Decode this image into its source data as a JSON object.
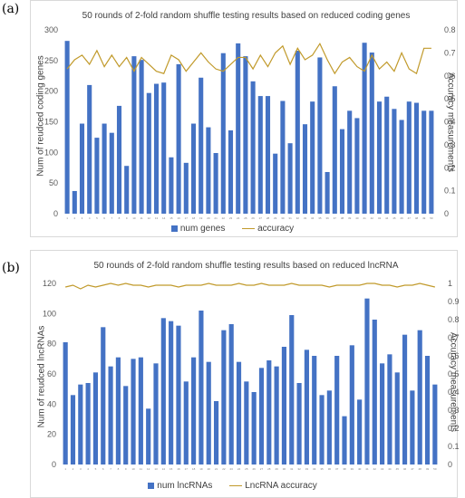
{
  "chart_data": [
    {
      "type": "bar",
      "panel_label": "(a)",
      "title": "50 rounds of 2-fold random shuffle testing results based on reduced coding genes",
      "ylabel": "Num of reudced coding genes",
      "y2label": "Accuracy measurements",
      "ylim": [
        0,
        300
      ],
      "yticks": [
        0,
        50,
        100,
        150,
        200,
        250,
        300
      ],
      "y2lim": [
        0,
        0.8
      ],
      "y2ticks": [
        "0",
        "0.1",
        "0.2",
        "0.3",
        "0.4",
        "0.5",
        "0.6",
        "0.7",
        "0.8"
      ],
      "categories": [
        "1",
        "2",
        "3",
        "4",
        "5",
        "6",
        "7",
        "8",
        "9",
        "10",
        "11",
        "12",
        "13",
        "14",
        "15",
        "16",
        "17",
        "18",
        "19",
        "20",
        "21",
        "22",
        "23",
        "24",
        "25",
        "26",
        "27",
        "28",
        "29",
        "30",
        "31",
        "32",
        "33",
        "34",
        "35",
        "36",
        "37",
        "38",
        "39",
        "40",
        "41",
        "42",
        "43",
        "44",
        "45",
        "46",
        "47",
        "48",
        "49",
        "50"
      ],
      "legend_position": "bottom",
      "series": [
        {
          "name": "num genes",
          "kind": "bar",
          "color": "#4472c4",
          "values": [
            282,
            37,
            147,
            210,
            124,
            147,
            132,
            176,
            78,
            257,
            251,
            197,
            212,
            214,
            92,
            244,
            83,
            147,
            222,
            141,
            99,
            262,
            136,
            278,
            257,
            216,
            192,
            192,
            98,
            184,
            115,
            266,
            146,
            183,
            255,
            68,
            208,
            138,
            168,
            156,
            279,
            263,
            183,
            191,
            171,
            153,
            183,
            181,
            168,
            168
          ]
        },
        {
          "name": "accuracy",
          "kind": "line",
          "axis": "right",
          "color": "#c19a2b",
          "values": [
            0.63,
            0.67,
            0.69,
            0.65,
            0.71,
            0.64,
            0.69,
            0.64,
            0.68,
            0.62,
            0.68,
            0.65,
            0.62,
            0.61,
            0.69,
            0.67,
            0.62,
            0.66,
            0.7,
            0.66,
            0.63,
            0.62,
            0.65,
            0.68,
            0.68,
            0.63,
            0.69,
            0.64,
            0.7,
            0.73,
            0.65,
            0.72,
            0.67,
            0.69,
            0.74,
            0.67,
            0.61,
            0.66,
            0.68,
            0.64,
            0.62,
            0.69,
            0.63,
            0.66,
            0.62,
            0.7,
            0.63,
            0.61,
            0.72,
            0.72
          ]
        }
      ]
    },
    {
      "type": "bar",
      "panel_label": "(b)",
      "title": "50 rounds of 2-fold random shuffle testing results based on reduced lncRNA",
      "ylabel": "Num of reudced lncRNAs",
      "y2label": "Accuracy measurements",
      "ylim": [
        0,
        120
      ],
      "yticks": [
        0,
        20,
        40,
        60,
        80,
        100,
        120
      ],
      "y2lim": [
        0,
        1
      ],
      "y2ticks": [
        "0",
        "0.1",
        "0.2",
        "0.3",
        "0.4",
        "0.5",
        "0.6",
        "0.7",
        "0.8",
        "0.9",
        "1"
      ],
      "categories": [
        "1",
        "2",
        "3",
        "4",
        "5",
        "6",
        "7",
        "8",
        "9",
        "10",
        "11",
        "12",
        "13",
        "14",
        "15",
        "16",
        "17",
        "18",
        "19",
        "20",
        "21",
        "22",
        "23",
        "24",
        "25",
        "26",
        "27",
        "28",
        "29",
        "30",
        "31",
        "32",
        "33",
        "34",
        "35",
        "36",
        "37",
        "38",
        "39",
        "40",
        "41",
        "42",
        "43",
        "44",
        "45",
        "46",
        "47",
        "48",
        "49",
        "50"
      ],
      "legend_position": "bottom",
      "series": [
        {
          "name": "num lncRNAs",
          "kind": "bar",
          "color": "#4472c4",
          "values": [
            81,
            46,
            53,
            54,
            61,
            91,
            65,
            71,
            52,
            70,
            71,
            37,
            67,
            97,
            95,
            92,
            55,
            71,
            102,
            68,
            42,
            89,
            93,
            68,
            55,
            48,
            64,
            69,
            65,
            78,
            99,
            54,
            76,
            72,
            46,
            49,
            72,
            32,
            79,
            43,
            110,
            96,
            67,
            73,
            61,
            86,
            49,
            89,
            72,
            53
          ]
        },
        {
          "name": "LncRNA accuracy",
          "kind": "line",
          "axis": "right",
          "color": "#c19a2b",
          "values": [
            0.98,
            0.99,
            0.97,
            0.99,
            0.98,
            0.99,
            1.0,
            0.99,
            1.0,
            0.99,
            0.99,
            0.98,
            0.99,
            0.99,
            0.99,
            0.98,
            0.99,
            0.99,
            0.99,
            1.0,
            0.99,
            0.99,
            0.99,
            1.0,
            0.99,
            0.99,
            1.0,
            0.99,
            0.99,
            0.99,
            1.0,
            0.99,
            0.99,
            0.99,
            0.99,
            0.98,
            0.99,
            0.99,
            0.99,
            0.99,
            1.0,
            1.0,
            0.99,
            0.99,
            0.98,
            0.99,
            0.99,
            1.0,
            0.99,
            0.98
          ]
        }
      ]
    }
  ]
}
